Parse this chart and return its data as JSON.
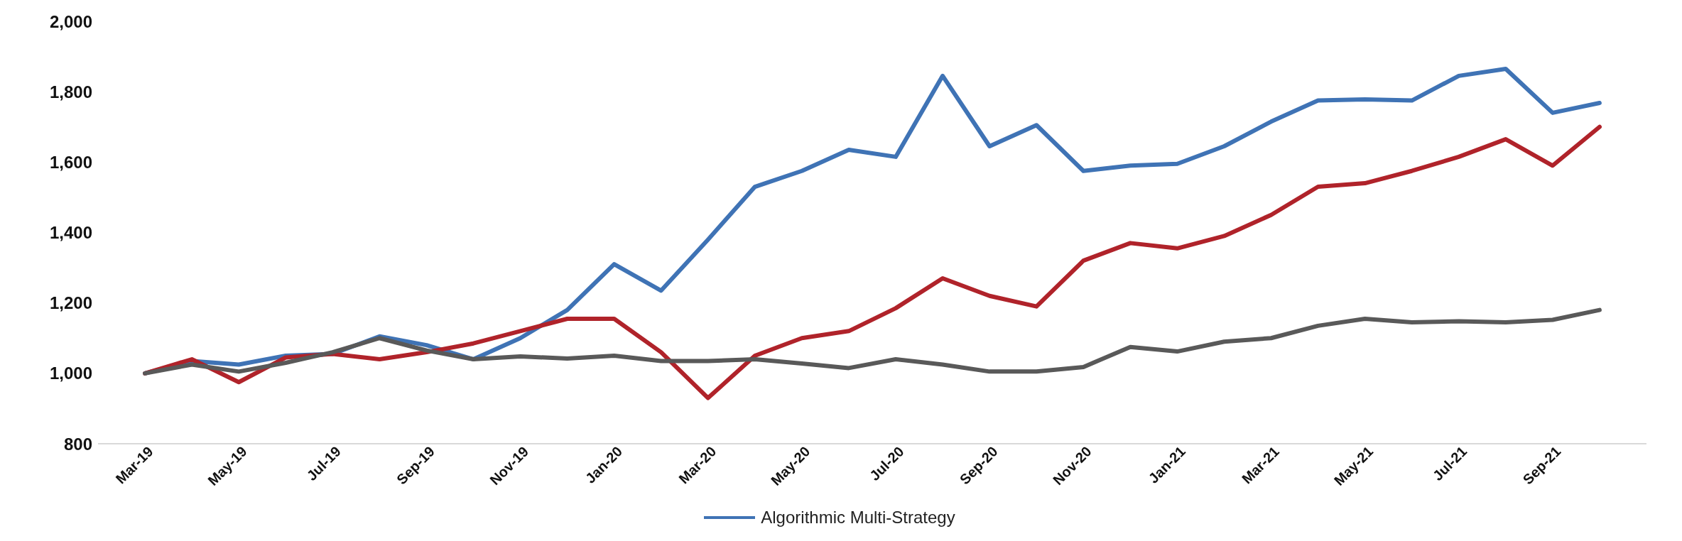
{
  "chart_data": {
    "type": "line",
    "categories": [
      "Mar-19",
      null,
      "May-19",
      null,
      "Jul-19",
      null,
      "Sep-19",
      null,
      "Nov-19",
      null,
      "Jan-20",
      null,
      "Mar-20",
      null,
      "May-20",
      null,
      "Jul-20",
      null,
      "Sep-20",
      null,
      "Nov-20",
      null,
      "Jan-21",
      null,
      "Mar-21",
      null,
      "May-21",
      null,
      "Jul-21",
      null,
      "Sep-21",
      null
    ],
    "series": [
      {
        "name": "Algorithmic Multi-Strategy",
        "color": "#3f73b5",
        "values": [
          1000,
          1035,
          1025,
          1050,
          1055,
          1105,
          1080,
          1040,
          1100,
          1180,
          1310,
          1235,
          1380,
          1530,
          1575,
          1635,
          1615,
          1845,
          1645,
          1705,
          1575,
          1590,
          1595,
          1645,
          1715,
          1775,
          1778,
          1775,
          1845,
          1865,
          1740,
          1768
        ]
      },
      {
        "color": "#b0232a",
        "values": [
          1000,
          1040,
          975,
          1045,
          1055,
          1040,
          1060,
          1085,
          1120,
          1155,
          1155,
          1060,
          930,
          1050,
          1100,
          1120,
          1185,
          1270,
          1220,
          1190,
          1320,
          1370,
          1355,
          1390,
          1450,
          1530,
          1540,
          1575,
          1615,
          1665,
          1590,
          1700
        ]
      },
      {
        "color": "#595959",
        "values": [
          1000,
          1025,
          1005,
          1030,
          1060,
          1100,
          1065,
          1040,
          1048,
          1042,
          1050,
          1035,
          1035,
          1040,
          1028,
          1015,
          1040,
          1025,
          1005,
          1005,
          1018,
          1075,
          1062,
          1090,
          1100,
          1135,
          1155,
          1145,
          1148,
          1145,
          1152,
          1180
        ]
      }
    ],
    "ylim": [
      800,
      2000
    ],
    "yticks": [
      800,
      {
        "value": 1000,
        "label": "1,000"
      },
      {
        "value": 1200,
        "label": "1,200"
      },
      {
        "value": 1400,
        "label": "1,400"
      },
      {
        "value": 1600,
        "label": "1,600"
      },
      {
        "value": 1800,
        "label": "1,800"
      },
      {
        "value": 2000,
        "label": "2,000"
      }
    ],
    "grid": false,
    "legend": "bottom",
    "marker": "none",
    "line_style": "solid"
  }
}
